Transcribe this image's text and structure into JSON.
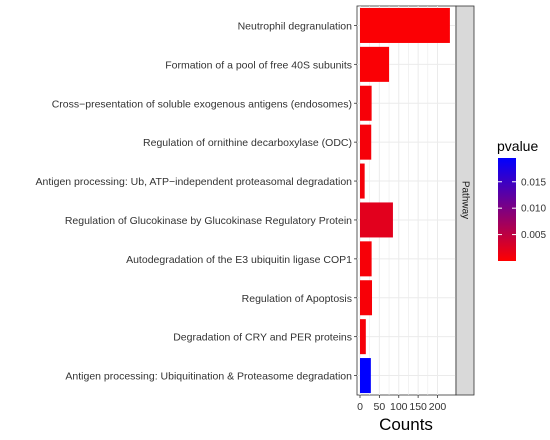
{
  "chart_data": {
    "type": "bar",
    "orientation": "horizontal",
    "categories": [
      "Neutrophil degranulation",
      "Formation of a pool of free 40S subunits",
      "Cross−presentation of soluble exogenous antigens (endosomes)",
      "Regulation of ornithine decarboxylase (ODC)",
      "Antigen processing: Ub, ATP−independent proteasomal degradation",
      "Regulation of Glucokinase by Glucokinase Regulatory Protein",
      "Autodegradation of the E3 ubiquitin ligase COP1",
      "Regulation of Apoptosis",
      "Degradation of CRY and PER proteins",
      "Antigen processing: Ubiquitination & Proteasome degradation"
    ],
    "values": [
      232,
      75,
      30,
      29,
      12,
      85,
      30,
      31,
      15,
      28
    ],
    "pvalues": [
      0.0003,
      0.0004,
      0.0006,
      0.0007,
      0.0008,
      0.0022,
      0.0006,
      0.0005,
      0.0007,
      0.0195
    ],
    "xlabel": "Counts",
    "xlim": [
      0,
      240
    ],
    "xticks": [
      0,
      50,
      100,
      150,
      200
    ],
    "facet_label": "Pathway",
    "grid": true,
    "legend": {
      "title": "pvalue",
      "position": "right",
      "range": [
        0.0,
        0.0195
      ],
      "ticks": [
        0.005,
        0.01,
        0.015
      ],
      "tick_labels": [
        "0.005",
        "0.010",
        "0.015"
      ],
      "color_low": "#ff0000",
      "color_high": "#0000ff"
    },
    "colors": {
      "panel_background": "#ffffff",
      "grid": "#ebebeb",
      "strip_background": "#d9d9d9",
      "axis": "#333333"
    }
  }
}
